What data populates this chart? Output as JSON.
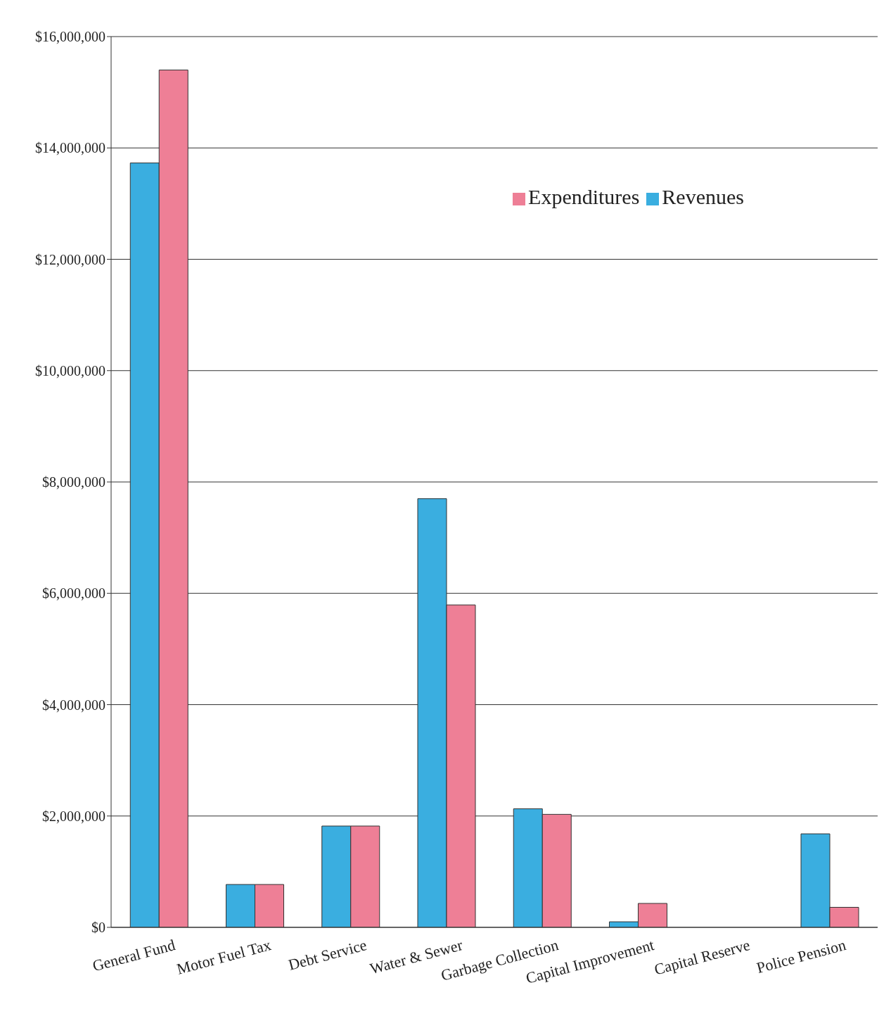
{
  "chart_data": {
    "type": "bar",
    "categories": [
      "General Fund",
      "Motor Fuel Tax",
      "Debt Service",
      "Water & Sewer",
      "Garbage Collection",
      "Capital Improvement",
      "Capital Reserve",
      "Police Pension"
    ],
    "series": [
      {
        "name": "Revenues",
        "color": "#3aaee0",
        "values": [
          13730000,
          770000,
          1820000,
          7700000,
          2130000,
          100000,
          0,
          1680000
        ]
      },
      {
        "name": "Expenditures",
        "color": "#ee7f96",
        "values": [
          15400000,
          770000,
          1820000,
          5790000,
          2030000,
          430000,
          0,
          360000
        ]
      }
    ],
    "ylim": [
      0,
      16000000
    ],
    "yticks": [
      {
        "value": 0,
        "label": "$0"
      },
      {
        "value": 2000000,
        "label": "$2,000,000"
      },
      {
        "value": 4000000,
        "label": "$4,000,000"
      },
      {
        "value": 6000000,
        "label": "$6,000,000"
      },
      {
        "value": 8000000,
        "label": "$8,000,000"
      },
      {
        "value": 10000000,
        "label": "$10,000,000"
      },
      {
        "value": 12000000,
        "label": "$12,000,000"
      },
      {
        "value": 14000000,
        "label": "$14,000,000"
      },
      {
        "value": 16000000,
        "label": "$16,000,000"
      }
    ],
    "grid": "y",
    "legend": "top right"
  }
}
